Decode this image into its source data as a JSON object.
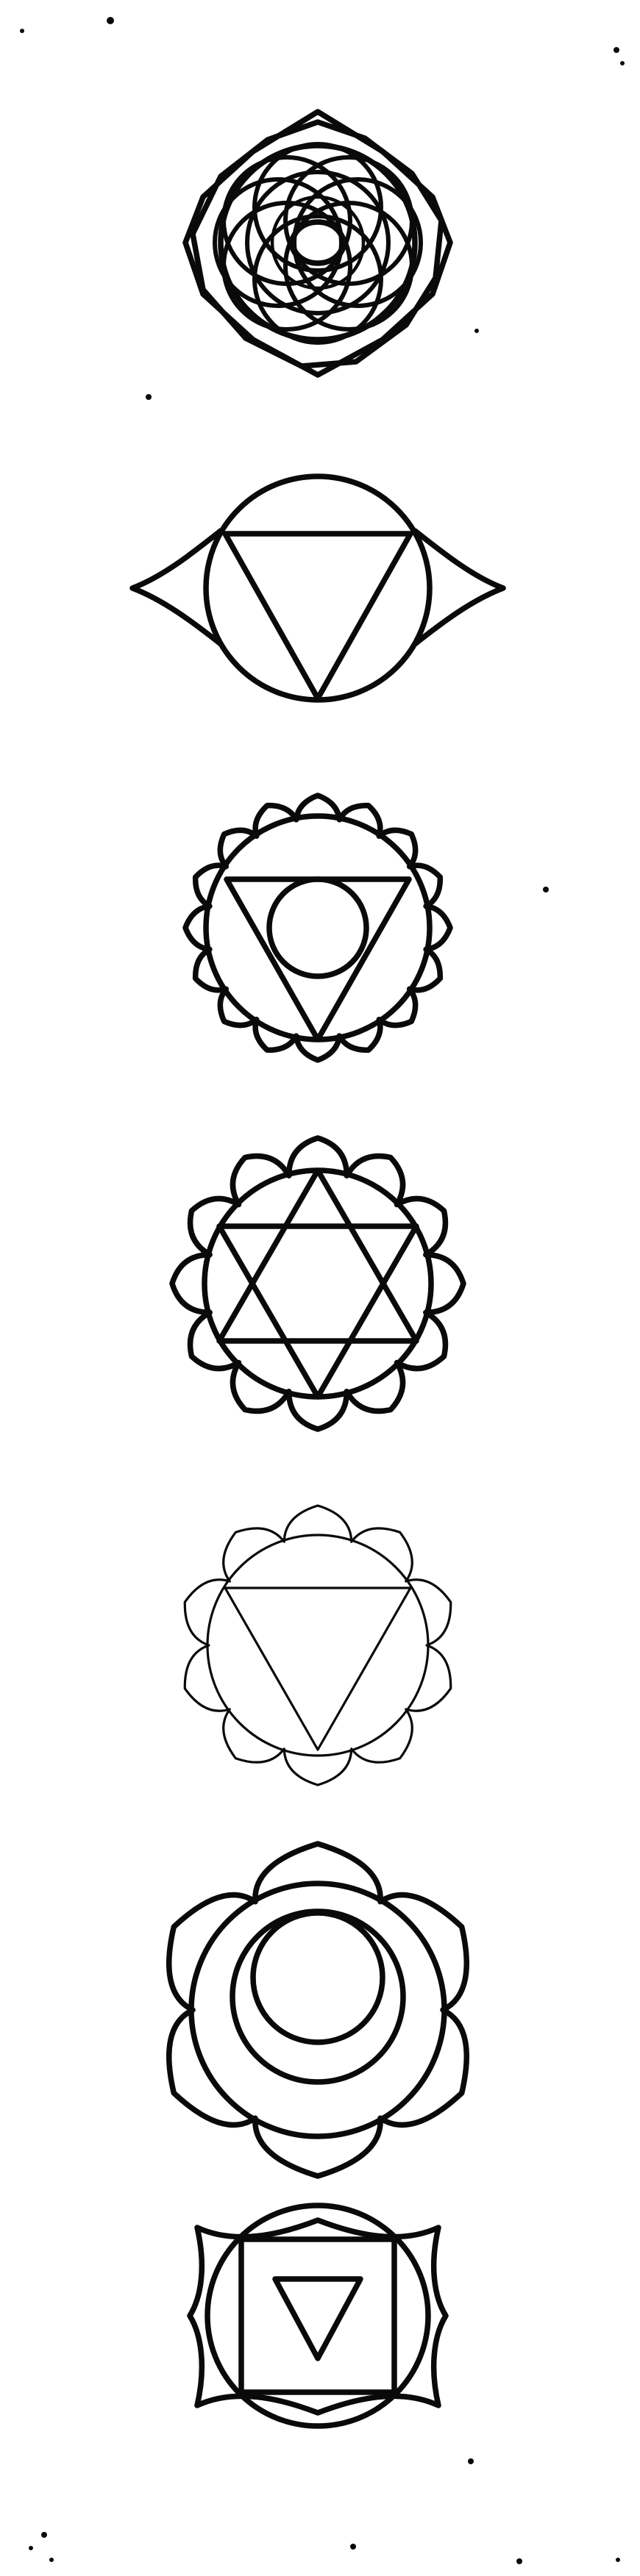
{
  "document": {
    "title": "",
    "ink_color": "#0a0a0a",
    "paper_color": "#ffffff"
  },
  "symbols": [
    {
      "order": 1,
      "icon": "thousand-petal-lotus-icon",
      "parts": [
        "overlapping-petal-rings",
        "center-oval"
      ]
    },
    {
      "order": 2,
      "icon": "two-petal-lotus-icon",
      "parts": [
        "circle",
        "downward-triangle",
        "side-petals"
      ]
    },
    {
      "order": 3,
      "icon": "sixteen-petal-lotus-icon",
      "parts": [
        "petal-ring",
        "circle",
        "downward-triangle",
        "inner-circle"
      ]
    },
    {
      "order": 4,
      "icon": "twelve-petal-lotus-icon",
      "parts": [
        "petal-ring",
        "circle",
        "hexagram"
      ]
    },
    {
      "order": 5,
      "icon": "ten-petal-lotus-icon",
      "parts": [
        "petal-ring",
        "circle",
        "downward-triangle"
      ]
    },
    {
      "order": 6,
      "icon": "six-petal-lotus-icon",
      "parts": [
        "petal-ring",
        "circle",
        "crescent"
      ]
    },
    {
      "order": 7,
      "icon": "four-petal-lotus-icon",
      "parts": [
        "petal-ring",
        "circle",
        "square",
        "downward-triangle"
      ]
    }
  ]
}
